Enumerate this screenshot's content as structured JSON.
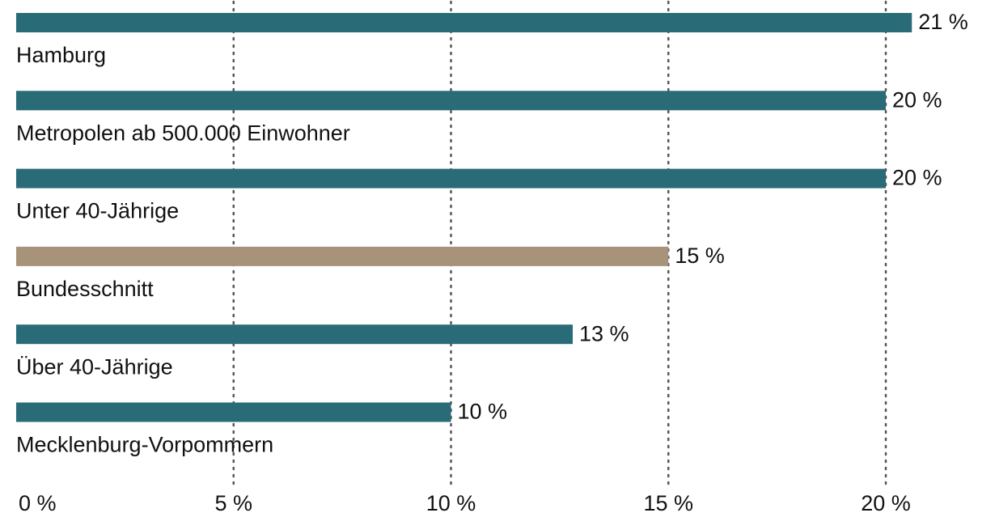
{
  "chart_data": {
    "type": "barh",
    "categories": [
      "Hamburg",
      "Metropolen ab 500.000 Einwohner",
      "Unter 40-Jährige",
      "Bundesschnitt",
      "Über 40-Jährige",
      "Mecklenburg-Vorpommern"
    ],
    "values": [
      20.6,
      20,
      20,
      15,
      12.8,
      10
    ],
    "value_labels": [
      "21 %",
      "20 %",
      "20 %",
      "15 %",
      "13 %",
      "10 %"
    ],
    "colors": [
      "#2a6b78",
      "#2a6b78",
      "#2a6b78",
      "#a89279",
      "#2a6b78",
      "#2a6b78"
    ],
    "xlim": [
      0,
      20
    ],
    "xticks": [
      {
        "value": 0,
        "label": "0 %"
      },
      {
        "value": 5,
        "label": "5 %"
      },
      {
        "value": 10,
        "label": "10 %"
      },
      {
        "value": 15,
        "label": "15 %"
      },
      {
        "value": 20,
        "label": "20 %"
      }
    ],
    "grid": true
  }
}
